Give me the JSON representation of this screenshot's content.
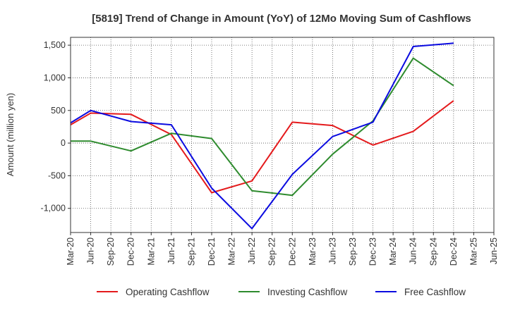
{
  "chart_data": {
    "type": "line",
    "title": "[5819]  Trend of Change in Amount (YoY) of 12Mo Moving Sum of Cashflows",
    "ylabel": "Amount (million yen)",
    "xlabel": "",
    "ylim": [
      -1370,
      1620
    ],
    "yticks": [
      -1000,
      -500,
      0,
      500,
      1000,
      1500
    ],
    "ytick_labels": [
      "-1,000",
      "-500",
      "0",
      "500",
      "1,000",
      "1,500"
    ],
    "categories": [
      "Mar-20",
      "Jun-20",
      "Sep-20",
      "Dec-20",
      "Mar-21",
      "Jun-21",
      "Sep-21",
      "Dec-21",
      "Mar-22",
      "Jun-22",
      "Sep-22",
      "Dec-22",
      "Mar-23",
      "Jun-23",
      "Sep-23",
      "Dec-23",
      "Mar-24",
      "Jun-24",
      "Sep-24",
      "Dec-24",
      "Mar-25",
      "Jun-25"
    ],
    "grid": true,
    "legend_position": "bottom",
    "series": [
      {
        "name": "Operating Cashflow",
        "color": "#e41a1c",
        "values": [
          280,
          460,
          null,
          440,
          null,
          130,
          null,
          -760,
          null,
          -580,
          null,
          320,
          null,
          270,
          null,
          -30,
          null,
          180,
          null,
          650,
          null,
          null
        ]
      },
      {
        "name": "Investing Cashflow",
        "color": "#2e8b2e",
        "values": [
          30,
          30,
          null,
          -120,
          null,
          150,
          null,
          70,
          null,
          -730,
          null,
          -800,
          null,
          -170,
          null,
          340,
          null,
          1300,
          null,
          880,
          null,
          null
        ]
      },
      {
        "name": "Free Cashflow",
        "color": "#0b0be0",
        "values": [
          310,
          500,
          null,
          330,
          null,
          280,
          null,
          -690,
          null,
          -1310,
          null,
          -480,
          null,
          100,
          null,
          320,
          null,
          1480,
          null,
          1530,
          null,
          null
        ]
      }
    ]
  }
}
